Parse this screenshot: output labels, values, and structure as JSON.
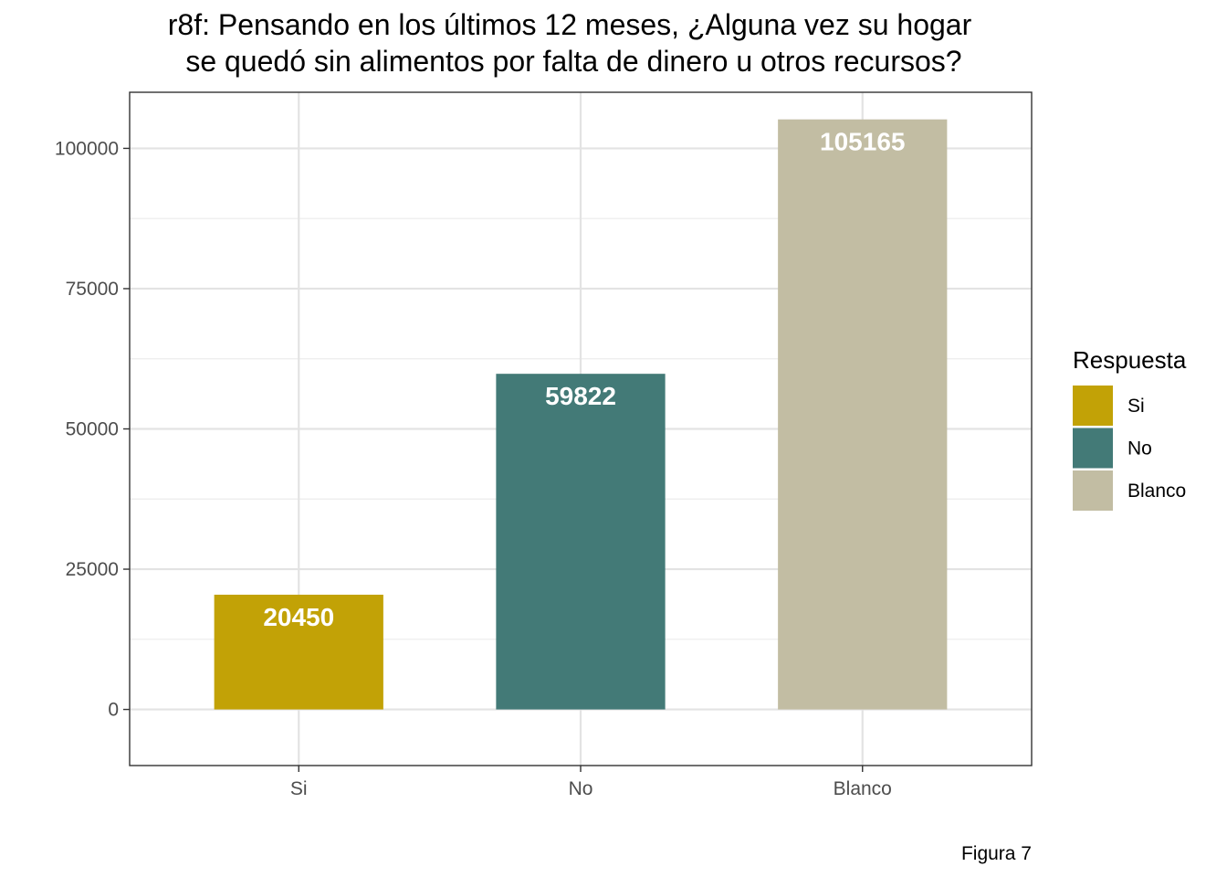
{
  "chart_data": {
    "type": "bar",
    "title_lines": [
      "r8f: Pensando en los últimos 12 meses, ¿Alguna vez su hogar",
      " se quedó sin alimentos por falta de dinero u otros recursos?"
    ],
    "categories": [
      "Si",
      "No",
      "Blanco"
    ],
    "values": [
      20450,
      59822,
      105165
    ],
    "value_labels": [
      "20450",
      "59822",
      "105165"
    ],
    "colors": [
      "#c2a206",
      "#437a77",
      "#c2bda3"
    ],
    "xlabel": "",
    "ylabel": "",
    "ylim": [
      -10000,
      110000
    ],
    "yticks": [
      0,
      25000,
      50000,
      75000,
      100000
    ],
    "ytick_labels": [
      "0",
      "25000",
      "50000",
      "75000",
      "100000"
    ],
    "grid": true,
    "legend": {
      "title": "Respuesta",
      "position": "right",
      "entries": [
        "Si",
        "No",
        "Blanco"
      ]
    },
    "caption": "Figura 7"
  }
}
